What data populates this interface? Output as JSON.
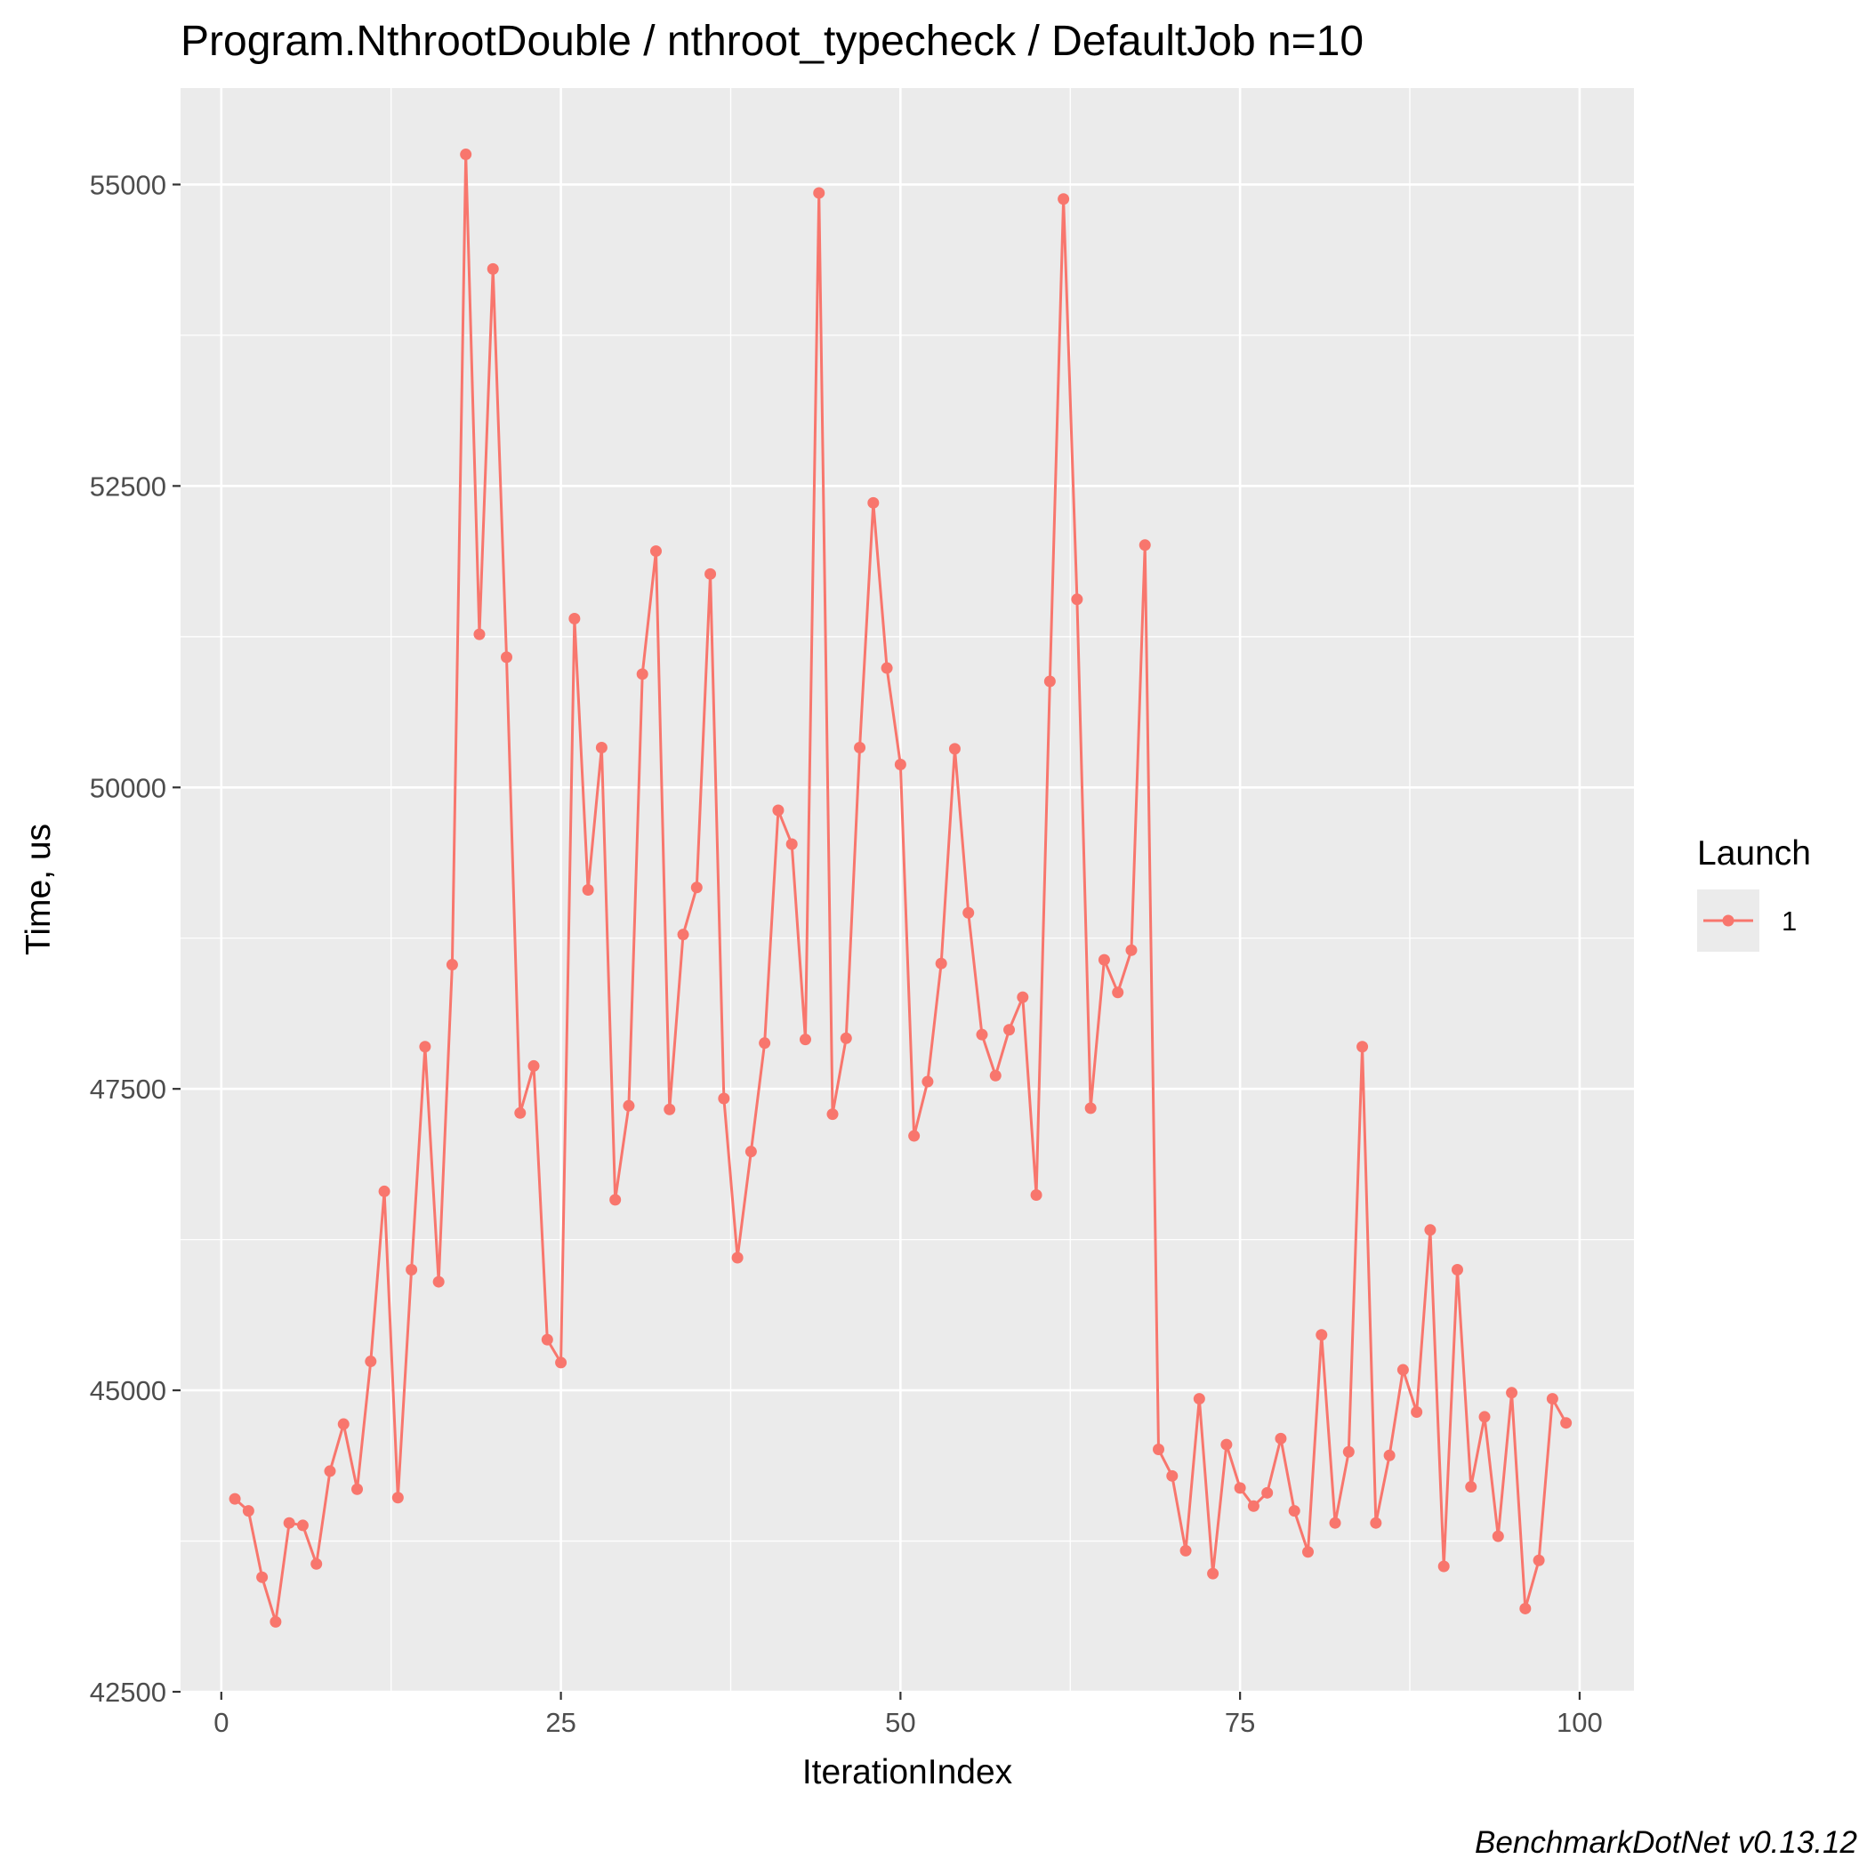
{
  "chart_data": {
    "type": "line",
    "title": "Program.NthrootDouble / nthroot_typecheck / DefaultJob n=10",
    "xlabel": "IterationIndex",
    "ylabel": "Time, us",
    "caption": "BenchmarkDotNet v0.13.12",
    "xlim": [
      -3,
      104
    ],
    "ylim": [
      42500,
      55800
    ],
    "x_ticks": [
      0,
      25,
      50,
      75,
      100
    ],
    "y_ticks": [
      42500,
      45000,
      47500,
      50000,
      52500,
      55000
    ],
    "x_tick_labels": [
      "0",
      "25",
      "50",
      "75",
      "100"
    ],
    "y_tick_labels": [
      "42500",
      "45000",
      "47500",
      "50000",
      "52500",
      "55000"
    ],
    "grid": true,
    "legend": {
      "title": "Launch",
      "position": "right",
      "entries": [
        "1"
      ]
    },
    "series": [
      {
        "name": "1",
        "color": "#F8766D",
        "x": [
          1,
          2,
          3,
          4,
          5,
          6,
          7,
          8,
          9,
          10,
          11,
          12,
          13,
          14,
          15,
          16,
          17,
          18,
          19,
          20,
          21,
          22,
          23,
          24,
          25,
          26,
          27,
          28,
          29,
          30,
          31,
          32,
          33,
          34,
          35,
          36,
          37,
          38,
          39,
          40,
          41,
          42,
          43,
          44,
          45,
          46,
          47,
          48,
          49,
          50,
          51,
          52,
          53,
          54,
          55,
          56,
          57,
          58,
          59,
          60,
          61,
          62,
          63,
          64,
          65,
          66,
          67,
          68,
          69,
          70,
          71,
          72,
          73,
          74,
          75,
          76,
          77,
          78,
          79,
          80,
          81,
          82,
          83,
          84,
          85,
          86,
          87,
          88,
          89,
          90,
          91,
          92,
          93,
          94,
          95,
          96,
          97,
          98,
          99
        ],
        "values": [
          44100,
          44000,
          43450,
          43080,
          43900,
          43880,
          43560,
          44330,
          44720,
          44180,
          45240,
          46650,
          44110,
          46000,
          47850,
          45900,
          48530,
          55250,
          51270,
          54300,
          51080,
          47300,
          47690,
          45420,
          45230,
          51400,
          49150,
          50330,
          46580,
          47360,
          50940,
          51960,
          47330,
          48780,
          49170,
          51770,
          47420,
          46100,
          46980,
          47880,
          49810,
          49530,
          47910,
          54930,
          47290,
          47920,
          50330,
          52360,
          50990,
          50190,
          47110,
          47560,
          48540,
          50320,
          48960,
          47950,
          47610,
          47990,
          48260,
          46620,
          50880,
          54880,
          51560,
          47340,
          48570,
          48300,
          48650,
          52010,
          44510,
          44290,
          43670,
          44930,
          43480,
          44550,
          44190,
          44040,
          44150,
          44600,
          44000,
          43660,
          45460,
          43900,
          44490,
          47850,
          43900,
          44460,
          45170,
          44820,
          46330,
          43540,
          46000,
          44200,
          44780,
          43790,
          44980,
          43190,
          43590,
          44930,
          44730
        ]
      }
    ]
  }
}
